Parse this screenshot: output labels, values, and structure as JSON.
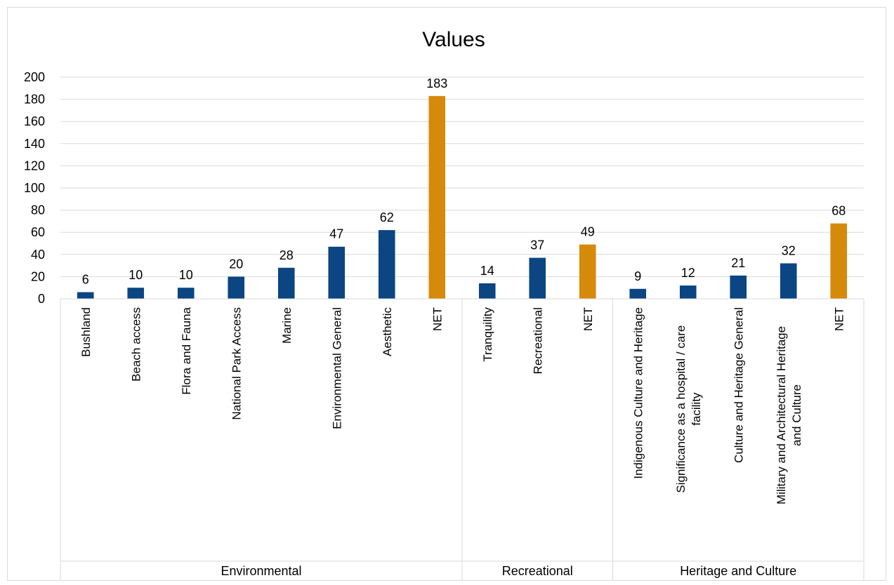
{
  "chart_data": {
    "type": "bar",
    "title": "Values",
    "xlabel": "",
    "ylabel": "",
    "ylim": [
      0,
      200
    ],
    "yticks": [
      0,
      20,
      40,
      60,
      80,
      100,
      120,
      140,
      160,
      180,
      200
    ],
    "grid": true,
    "legend": "none",
    "colors": {
      "item": "#0b4582",
      "net": "#d68a0a"
    },
    "groups": [
      {
        "name": "Environmental",
        "categories": [
          {
            "label": "Bushland",
            "value": 6,
            "net": false
          },
          {
            "label": "Beach access",
            "value": 10,
            "net": false
          },
          {
            "label": "Flora and Fauna",
            "value": 10,
            "net": false
          },
          {
            "label": "National Park Access",
            "value": 20,
            "net": false
          },
          {
            "label": "Marine",
            "value": 28,
            "net": false
          },
          {
            "label": "Environmental General",
            "value": 47,
            "net": false
          },
          {
            "label": "Aesthetic",
            "value": 62,
            "net": false
          },
          {
            "label": "NET",
            "value": 183,
            "net": true
          }
        ]
      },
      {
        "name": "Recreational",
        "categories": [
          {
            "label": "Tranquility",
            "value": 14,
            "net": false
          },
          {
            "label": "Recreational",
            "value": 37,
            "net": false
          },
          {
            "label": "NET",
            "value": 49,
            "net": true
          }
        ]
      },
      {
        "name": "Heritage and Culture",
        "categories": [
          {
            "label": "Indigenous Culture and Heritage",
            "value": 9,
            "net": false
          },
          {
            "label": [
              "Significance as a hospital / care",
              "facility"
            ],
            "value": 12,
            "net": false
          },
          {
            "label": "Culture and Heritage General",
            "value": 21,
            "net": false
          },
          {
            "label": [
              "Military and Architectural Heritage",
              "and Culture"
            ],
            "value": 32,
            "net": false
          },
          {
            "label": "NET",
            "value": 68,
            "net": true
          }
        ]
      }
    ]
  }
}
